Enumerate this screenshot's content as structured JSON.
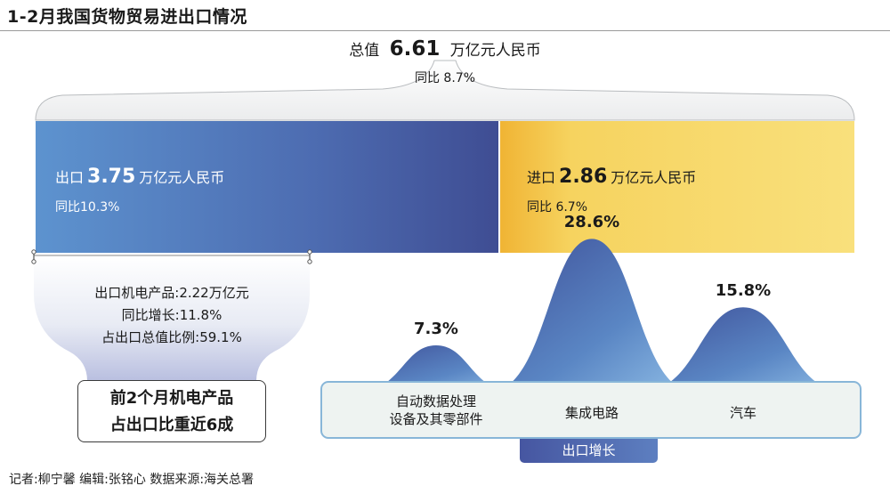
{
  "title": "1-2月我国货物贸易进出口情况",
  "total": {
    "prefix": "总值",
    "value": "6.61",
    "unit": "万亿元人民币",
    "yoy": "同比 8.7%"
  },
  "export": {
    "prefix": "出口",
    "value": "3.75",
    "unit": "万亿元人民币",
    "yoy": "同比10.3%"
  },
  "import": {
    "prefix": "进口",
    "value": "2.86",
    "unit": "万亿元人民币",
    "yoy": "同比 6.7%"
  },
  "mechanical": {
    "line1": "出口机电产品:2.22万亿元",
    "line2": "同比增长:11.8%",
    "line3": "占出口总值比例:59.1%"
  },
  "callout": {
    "line1": "前2个月机电产品",
    "line2": "占出口比重近6成"
  },
  "chart_data": {
    "type": "area",
    "title": "",
    "xlabel": "出口增长",
    "ylabel": "",
    "categories": [
      "自动数据处理设备及其零部件",
      "集成电路",
      "汽车"
    ],
    "category_lines": [
      [
        "自动数据处理",
        "设备及其零部件"
      ],
      [
        "集成电路"
      ],
      [
        "汽车"
      ]
    ],
    "values": [
      7.3,
      28.6,
      15.8
    ],
    "value_labels": [
      "7.3%",
      "28.6%",
      "15.8%"
    ],
    "grid": false,
    "colors": [
      "#3e4f98",
      "#5a86c4",
      "#7fb0df"
    ]
  },
  "footer": "记者:柳宁馨    编辑:张铭心    数据来源:海关总署"
}
